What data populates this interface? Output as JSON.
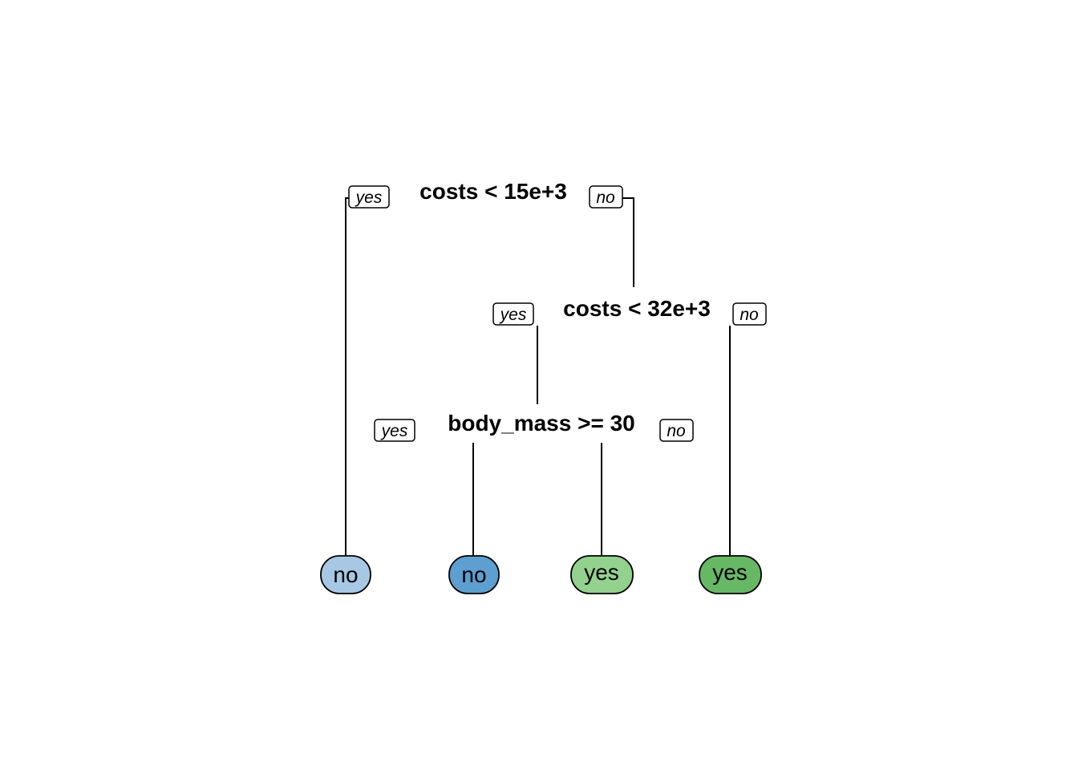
{
  "tree": {
    "type": "decision-tree",
    "branch_labels": {
      "left": "yes",
      "right": "no"
    },
    "splits": [
      {
        "id": "n1",
        "label": "costs < 15e+3"
      },
      {
        "id": "n2",
        "label": "costs < 32e+3"
      },
      {
        "id": "n3",
        "label": "body_mass >= 30"
      }
    ],
    "leaves": [
      {
        "id": "l1",
        "label": "no",
        "color": "#a6c8e4"
      },
      {
        "id": "l2",
        "label": "no",
        "color": "#5c9fd0"
      },
      {
        "id": "l3",
        "label": "yes",
        "color": "#93d18e"
      },
      {
        "id": "l4",
        "label": "yes",
        "color": "#67b865"
      }
    ]
  }
}
